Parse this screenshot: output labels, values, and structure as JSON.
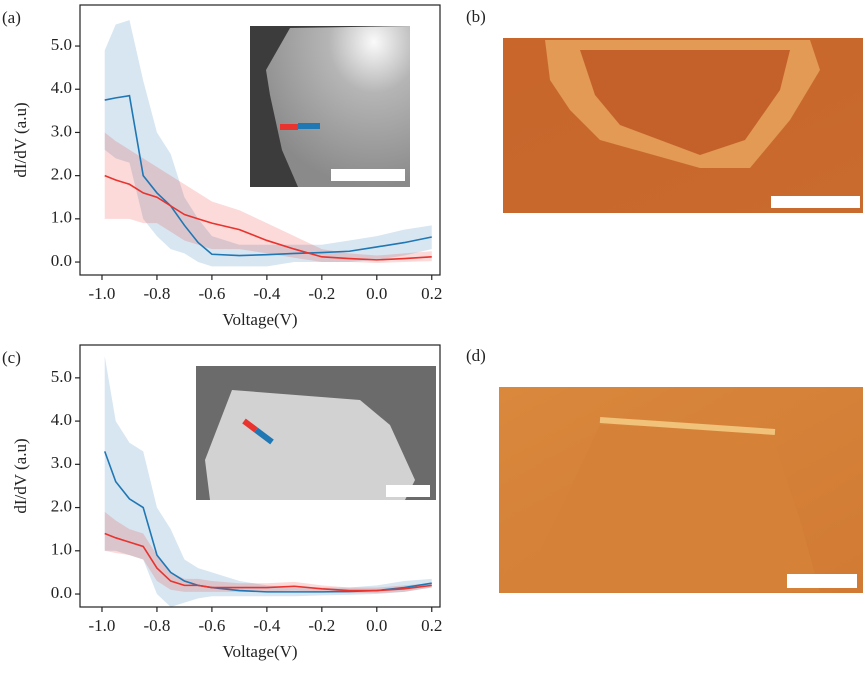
{
  "chart_data": [
    {
      "type": "line",
      "panel_label": "(a)",
      "ylabel": "dI/dV (a.u)",
      "xlabel": "Voltage(V)",
      "xlim": [
        -1.08,
        0.23
      ],
      "ylim": [
        -0.3,
        5.95
      ],
      "xticks": [
        {
          "value": -1,
          "label": "-1.0"
        },
        -0.8,
        -0.6,
        -0.4,
        -0.2,
        {
          "value": 0,
          "label": "0.0"
        },
        0.2
      ],
      "yticks": [
        {
          "value": 0,
          "label": "0.0"
        },
        {
          "value": 1,
          "label": "1.0"
        },
        {
          "value": 2,
          "label": "2.0"
        },
        {
          "value": 3,
          "label": "3.0"
        },
        {
          "value": 4,
          "label": "4.0"
        },
        {
          "value": 5,
          "label": "5.0"
        }
      ],
      "x": [
        -0.99,
        -0.95,
        -0.9,
        -0.85,
        -0.8,
        -0.75,
        -0.7,
        -0.65,
        -0.6,
        -0.5,
        -0.4,
        -0.3,
        -0.2,
        -0.1,
        0,
        0.1,
        0.2
      ],
      "series": [
        {
          "color": "#1f77b4",
          "values": [
            3.75,
            3.8,
            3.85,
            2.0,
            1.6,
            1.3,
            0.85,
            0.45,
            0.18,
            0.15,
            0.17,
            0.2,
            0.22,
            0.25,
            0.35,
            0.45,
            0.58
          ],
          "upper": [
            4.9,
            5.5,
            5.6,
            4.2,
            3.0,
            2.5,
            1.5,
            1.0,
            0.6,
            0.4,
            0.4,
            0.4,
            0.4,
            0.5,
            0.6,
            0.75,
            0.85
          ],
          "lower": [
            2.6,
            2.4,
            2.3,
            1.0,
            0.6,
            0.3,
            0.2,
            0.0,
            -0.1,
            -0.1,
            -0.1,
            0,
            0,
            0,
            0.05,
            0.15,
            0.3
          ]
        },
        {
          "color": "#e8332e",
          "values": [
            2.0,
            1.9,
            1.8,
            1.6,
            1.5,
            1.3,
            1.1,
            1.0,
            0.9,
            0.75,
            0.5,
            0.3,
            0.12,
            0.08,
            0.05,
            0.08,
            0.12
          ],
          "upper": [
            3.0,
            2.8,
            2.6,
            2.4,
            2.2,
            2.0,
            1.8,
            1.6,
            1.4,
            1.2,
            0.9,
            0.6,
            0.3,
            0.2,
            0.15,
            0.2,
            0.25
          ],
          "lower": [
            1.0,
            1.0,
            1.0,
            0.9,
            0.9,
            0.7,
            0.5,
            0.4,
            0.3,
            0.3,
            0.2,
            0.1,
            0,
            0,
            -0.02,
            0,
            0.02
          ]
        }
      ]
    },
    {
      "type": "line",
      "panel_label": "(c)",
      "ylabel": "dI/dV (a.u)",
      "xlabel": "Voltage(V)",
      "xlim": [
        -1.08,
        0.23
      ],
      "ylim": [
        -0.3,
        5.76
      ],
      "xticks": [
        {
          "value": -1,
          "label": "-1.0"
        },
        -0.8,
        -0.6,
        -0.4,
        -0.2,
        {
          "value": 0,
          "label": "0.0"
        },
        0.2
      ],
      "yticks": [
        {
          "value": 0,
          "label": "0.0"
        },
        {
          "value": 1,
          "label": "1.0"
        },
        {
          "value": 2,
          "label": "2.0"
        },
        {
          "value": 3,
          "label": "3.0"
        },
        {
          "value": 4,
          "label": "4.0"
        },
        {
          "value": 5,
          "label": "5.0"
        }
      ],
      "x": [
        -0.99,
        -0.95,
        -0.9,
        -0.85,
        -0.8,
        -0.75,
        -0.7,
        -0.65,
        -0.6,
        -0.5,
        -0.4,
        -0.3,
        -0.2,
        -0.1,
        0,
        0.1,
        0.2
      ],
      "series": [
        {
          "color": "#1f77b4",
          "values": [
            3.3,
            2.6,
            2.2,
            2.0,
            0.9,
            0.5,
            0.3,
            0.2,
            0.15,
            0.08,
            0.05,
            0.05,
            0.05,
            0.06,
            0.08,
            0.15,
            0.25
          ],
          "upper": [
            5.5,
            4.0,
            3.5,
            3.3,
            2.0,
            1.5,
            0.8,
            0.6,
            0.5,
            0.3,
            0.2,
            0.15,
            0.15,
            0.15,
            0.2,
            0.3,
            0.35
          ],
          "lower": [
            1.0,
            1.0,
            0.9,
            0.8,
            0.0,
            -0.3,
            -0.2,
            -0.1,
            -0.05,
            -0.05,
            -0.05,
            -0.05,
            -0.03,
            -0.02,
            0,
            0.05,
            0.15
          ]
        },
        {
          "color": "#e8332e",
          "values": [
            1.4,
            1.3,
            1.2,
            1.1,
            0.6,
            0.3,
            0.2,
            0.2,
            0.15,
            0.15,
            0.15,
            0.18,
            0.12,
            0.08,
            0.08,
            0.12,
            0.2
          ],
          "upper": [
            1.9,
            1.7,
            1.5,
            1.4,
            0.9,
            0.5,
            0.35,
            0.35,
            0.3,
            0.25,
            0.25,
            0.28,
            0.2,
            0.15,
            0.15,
            0.2,
            0.25
          ],
          "lower": [
            1.0,
            0.95,
            0.9,
            0.8,
            0.3,
            0.1,
            0.05,
            0.05,
            0.05,
            0.05,
            0.05,
            0.08,
            0.05,
            0.02,
            0.02,
            0.05,
            0.15
          ]
        }
      ]
    }
  ],
  "image_panels": [
    {
      "label": "(b)"
    },
    {
      "label": "(d)"
    }
  ]
}
